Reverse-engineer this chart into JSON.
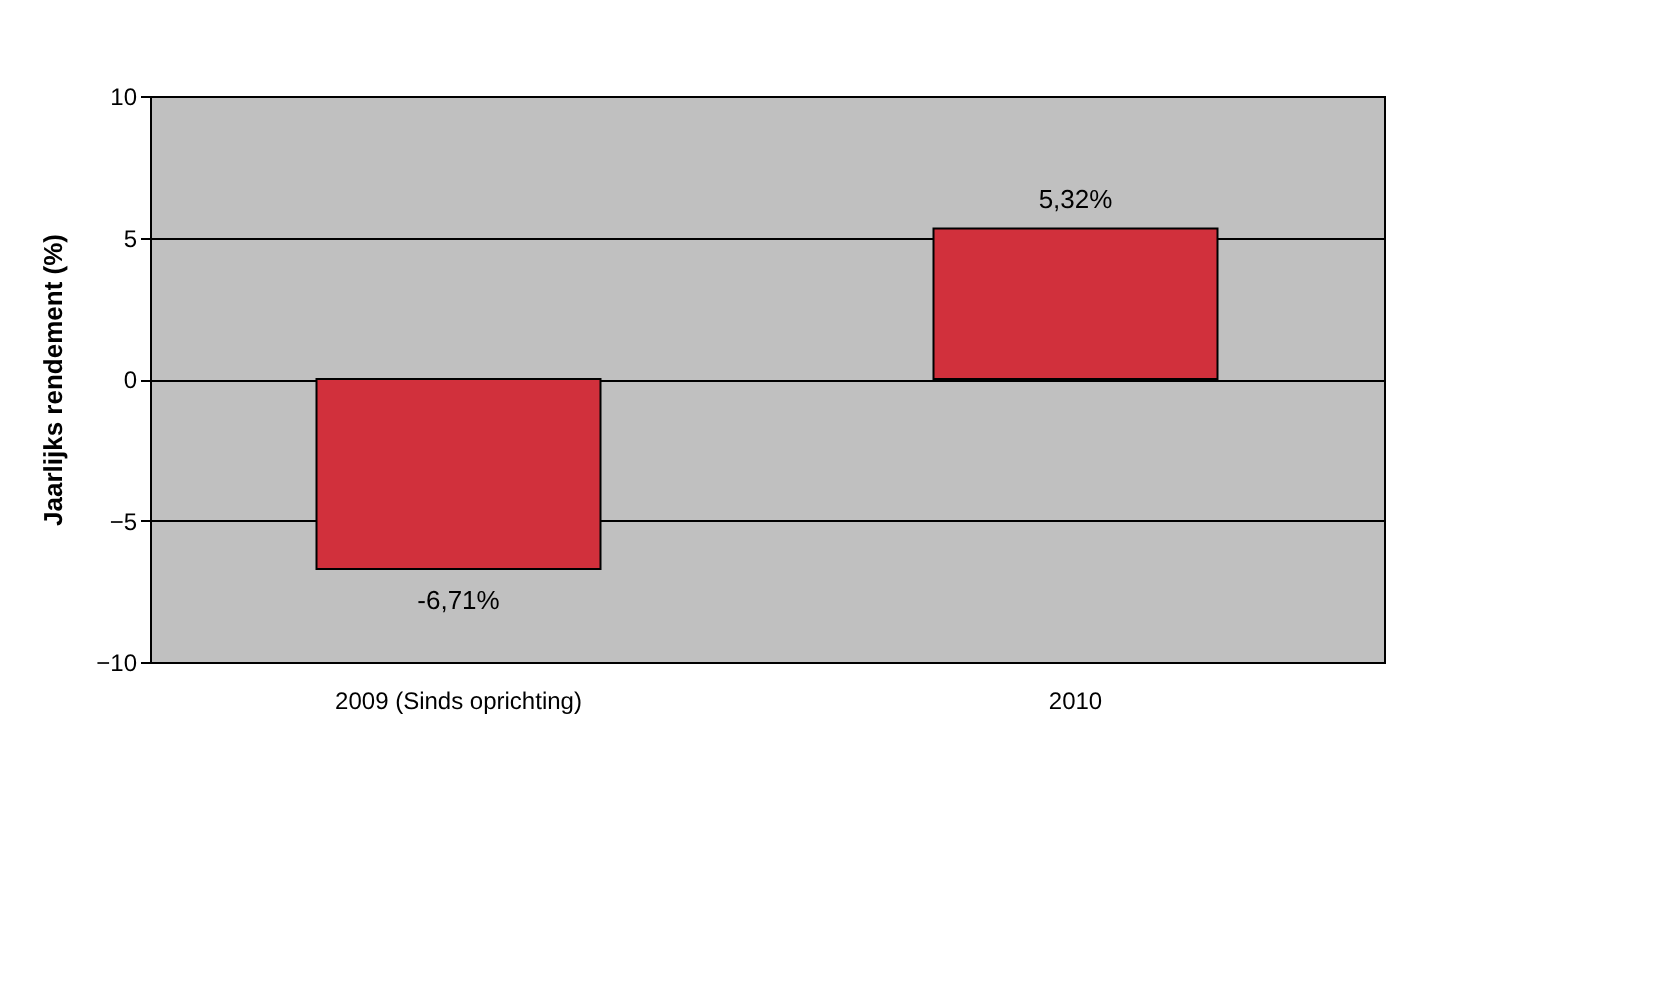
{
  "chart_data": {
    "type": "bar",
    "ylabel": "Jaarlijks rendement (%)",
    "categories": [
      "2009 (Sinds oprichting)",
      "2010"
    ],
    "values": [
      -6.71,
      5.32
    ],
    "value_labels": [
      "-6,71%",
      "5,32%"
    ],
    "color": "#d1303c",
    "ylim": [
      -10,
      10
    ],
    "yticks": [
      -10,
      -5,
      0,
      5,
      10
    ],
    "grid": "y"
  }
}
